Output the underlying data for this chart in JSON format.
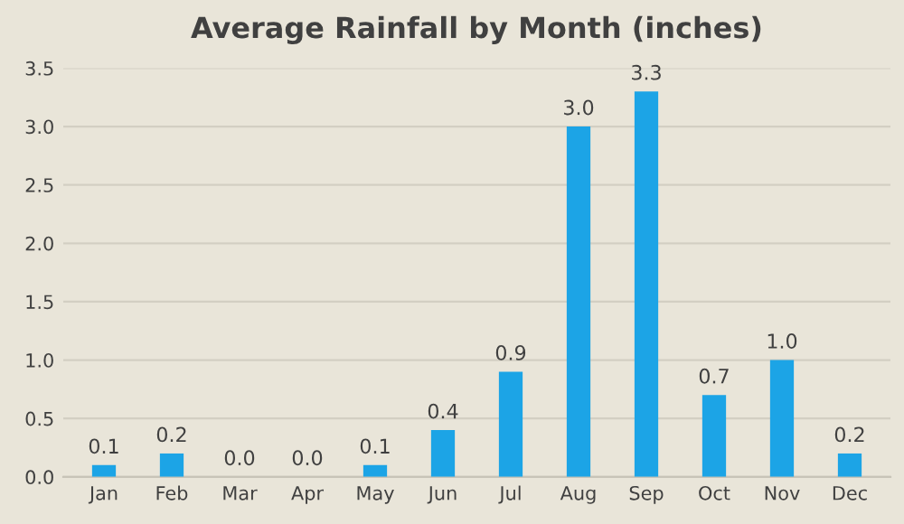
{
  "chart_data": {
    "type": "bar",
    "title": "Average Rainfall by Month (inches)",
    "categories": [
      "Jan",
      "Feb",
      "Mar",
      "Apr",
      "May",
      "Jun",
      "Jul",
      "Aug",
      "Sep",
      "Oct",
      "Nov",
      "Dec"
    ],
    "values": [
      0.1,
      0.2,
      0.0,
      0.0,
      0.1,
      0.4,
      0.9,
      3.0,
      3.3,
      0.7,
      1.0,
      0.2
    ],
    "value_labels": [
      "0.1",
      "0.2",
      "0.0",
      "0.0",
      "0.1",
      "0.4",
      "0.9",
      "3.0",
      "3.3",
      "0.7",
      "1.0",
      "0.2"
    ],
    "color": "#1ca4e6",
    "ylim": [
      0,
      3.5
    ],
    "yticks": [
      {
        "value": 0,
        "label": "0.0"
      },
      {
        "value": 0.5,
        "label": "0.5"
      },
      {
        "value": 1,
        "label": "1.0"
      },
      {
        "value": 1.5,
        "label": "1.5"
      },
      {
        "value": 2,
        "label": "2.0"
      },
      {
        "value": 2.5,
        "label": "2.5"
      },
      {
        "value": 3,
        "label": "3.0"
      },
      {
        "value": 3.5,
        "label": "3.5"
      }
    ],
    "grid": "y"
  }
}
